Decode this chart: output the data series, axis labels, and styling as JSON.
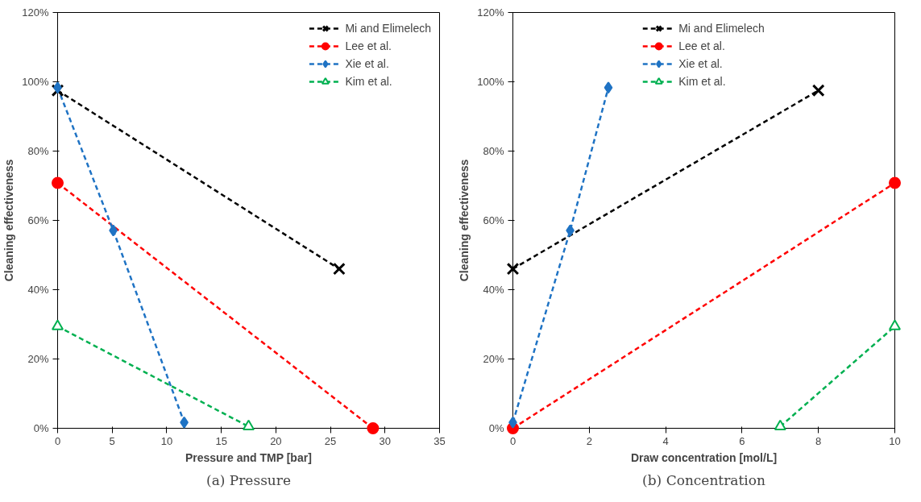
{
  "chart_data": [
    {
      "type": "line",
      "title": "(a) Pressure",
      "xlabel": "Pressure and TMP [bar]",
      "ylabel": "Cleaning effectiveness",
      "xlim": [
        0,
        35
      ],
      "xticks": [
        0,
        5,
        10,
        15,
        20,
        25,
        30,
        35
      ],
      "ylim": [
        0,
        120
      ],
      "yticks": [
        {
          "value": 0,
          "label": "0%"
        },
        {
          "value": 20,
          "label": "20%"
        },
        {
          "value": 40,
          "label": "40%"
        },
        {
          "value": 60,
          "label": "60%"
        },
        {
          "value": 80,
          "label": "80%"
        },
        {
          "value": 100,
          "label": "100%"
        },
        {
          "value": 120,
          "label": "120%"
        }
      ],
      "grid": false,
      "legend": "top right",
      "line_style": "dashed",
      "series": [
        {
          "name": "Mi and Elimelech",
          "color": "#000000",
          "marker": "cross",
          "x": [
            0,
            25.8
          ],
          "values": [
            97.5,
            46
          ]
        },
        {
          "name": "Lee et al.",
          "color": "#ff0000",
          "marker": "circle",
          "x": [
            0,
            28.9
          ],
          "values": [
            70.8,
            0
          ]
        },
        {
          "name": "Xie et al.",
          "color": "#1f73c4",
          "marker": "diamond",
          "x": [
            0,
            5.1,
            11.6
          ],
          "values": [
            98.3,
            57.1,
            1.7
          ]
        },
        {
          "name": "Kim et al.",
          "color": "#00b050",
          "marker": "triangle",
          "x": [
            0,
            17.5
          ],
          "values": [
            29.4,
            0.5
          ]
        }
      ]
    },
    {
      "type": "line",
      "title": "(b) Concentration",
      "xlabel": "Draw concentration [mol/L]",
      "ylabel": "Cleaning effectiveness",
      "xlim": [
        0,
        10
      ],
      "xticks": [
        0,
        2,
        4,
        6,
        8,
        10
      ],
      "ylim": [
        0,
        120
      ],
      "yticks": [
        {
          "value": 0,
          "label": "0%"
        },
        {
          "value": 20,
          "label": "20%"
        },
        {
          "value": 40,
          "label": "40%"
        },
        {
          "value": 60,
          "label": "60%"
        },
        {
          "value": 80,
          "label": "80%"
        },
        {
          "value": 100,
          "label": "100%"
        },
        {
          "value": 120,
          "label": "120%"
        }
      ],
      "grid": false,
      "legend": "top",
      "line_style": "dashed",
      "series": [
        {
          "name": "Mi and Elimelech",
          "color": "#000000",
          "marker": "cross",
          "x": [
            0,
            8
          ],
          "values": [
            46,
            97.5
          ]
        },
        {
          "name": "Lee et al.",
          "color": "#ff0000",
          "marker": "circle",
          "x": [
            0,
            10
          ],
          "values": [
            0,
            70.8
          ]
        },
        {
          "name": "Xie et al.",
          "color": "#1f73c4",
          "marker": "diamond",
          "x": [
            0,
            1.5,
            2.5
          ],
          "values": [
            1.7,
            57.1,
            98.3
          ]
        },
        {
          "name": "Kim et al.",
          "color": "#00b050",
          "marker": "triangle",
          "x": [
            7,
            10
          ],
          "values": [
            0.5,
            29.4
          ]
        }
      ]
    }
  ]
}
